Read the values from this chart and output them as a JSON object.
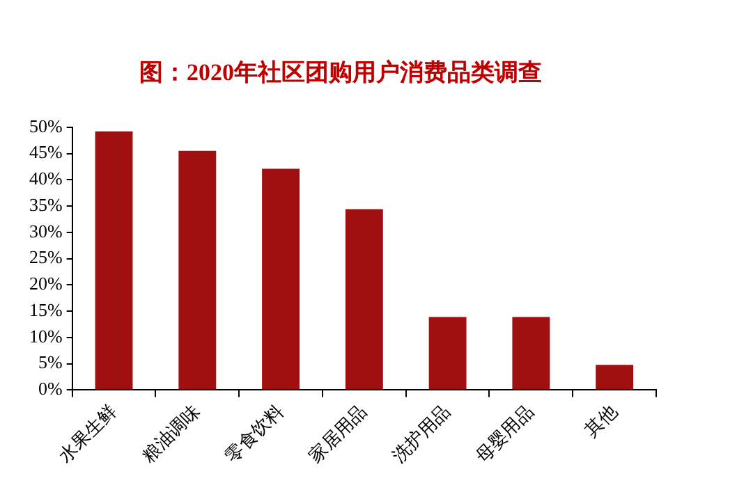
{
  "chart_data": {
    "type": "bar",
    "title": "图：2020年社区团购用户消费品类调查",
    "categories": [
      "水果生鲜",
      "粮油调味",
      "零食饮料",
      "家居用品",
      "洗护用品",
      "母婴用品",
      "其他"
    ],
    "values": [
      49.2,
      45.5,
      42.1,
      34.4,
      13.9,
      13.9,
      4.8
    ],
    "color": "#a01010",
    "ylim": [
      0,
      50
    ],
    "yticks": [
      {
        "value": 0,
        "label": "0%"
      },
      {
        "value": 5,
        "label": "5%"
      },
      {
        "value": 10,
        "label": "10%"
      },
      {
        "value": 15,
        "label": "15%"
      },
      {
        "value": 20,
        "label": "20%"
      },
      {
        "value": 25,
        "label": "25%"
      },
      {
        "value": 30,
        "label": "30%"
      },
      {
        "value": 35,
        "label": "35%"
      },
      {
        "value": 40,
        "label": "40%"
      },
      {
        "value": 45,
        "label": "45%"
      },
      {
        "value": 50,
        "label": "50%"
      }
    ],
    "grid": false,
    "legend": false
  }
}
